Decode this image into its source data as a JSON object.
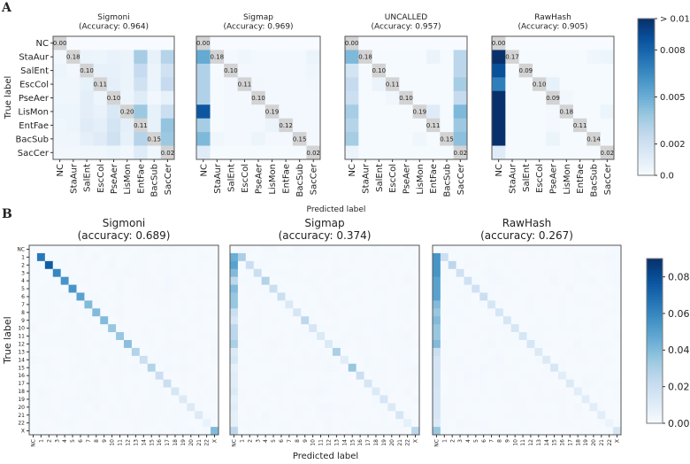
{
  "chart_data": [
    {
      "panel": "A",
      "type": "heatmap",
      "xlabel": "Predicted label",
      "ylabel": "True label",
      "labels": [
        "NC",
        "StaAur",
        "SalEnt",
        "EscCol",
        "PseAer",
        "LisMon",
        "EntFae",
        "BacSub",
        "SacCer"
      ],
      "colormap": "Blues",
      "colorbar": {
        "range": [
          0,
          0.01
        ],
        "ticks": [
          0.01,
          0.008,
          0.005,
          0.002,
          0.0
        ],
        "tick_labels": [
          "> 0.01",
          "0.008",
          "0.005",
          "0.002",
          "0.0"
        ]
      },
      "diagonal_masked_color": "#d3d3d3",
      "matrices": [
        {
          "title": "Sigmoni",
          "subtitle": "(Accuracy: 0.964)",
          "diagonal_labels": [
            "0.00",
            "0.18",
            "0.10",
            "0.11",
            "0.10",
            "0.20",
            "0.11",
            "0.15",
            "0.02"
          ],
          "values": [
            [
              0,
              0,
              0,
              0,
              0,
              0,
              0,
              0,
              0
            ],
            [
              0.0003,
              0,
              0.0006,
              0.0005,
              0.0007,
              0.0006,
              0.0035,
              0.0008,
              0.003
            ],
            [
              0.0005,
              0.0003,
              0,
              0.0008,
              0.0008,
              0.0006,
              0.0025,
              0.0006,
              0.002
            ],
            [
              0.0004,
              0.0004,
              0.0008,
              0,
              0.0009,
              0.0006,
              0.002,
              0.0006,
              0.0025
            ],
            [
              0.0004,
              0.0004,
              0.001,
              0.0005,
              0,
              0.0005,
              0.0012,
              0.0003,
              0.0008
            ],
            [
              0.0005,
              0.0005,
              0.001,
              0.0007,
              0.0015,
              0,
              0.0038,
              0.0008,
              0.0022
            ],
            [
              0.0004,
              0.0005,
              0.0012,
              0.0009,
              0.0018,
              0.0009,
              0,
              0.0008,
              0.004
            ],
            [
              0.0004,
              0.0004,
              0.0009,
              0.0012,
              0.002,
              0.0008,
              0.003,
              0,
              0.0038
            ],
            [
              0.0003,
              0.0003,
              0.0004,
              0.0004,
              0.0005,
              0.0003,
              0.0012,
              0.0004,
              0
            ]
          ]
        },
        {
          "title": "Sigmap",
          "subtitle": "(Accuracy: 0.969)",
          "diagonal_labels": [
            "0.00",
            "0.18",
            "0.10",
            "0.11",
            "0.10",
            "0.19",
            "0.12",
            "0.15",
            "0.02"
          ],
          "values": [
            [
              0,
              0,
              0,
              0,
              0,
              0,
              0,
              0,
              0
            ],
            [
              0.0052,
              0,
              0.0002,
              0.0004,
              0.0002,
              0.0002,
              0.0002,
              0.0002,
              0.0006
            ],
            [
              0.0032,
              0.0001,
              0,
              0.0002,
              0.0002,
              0.0002,
              0.0002,
              0.0002,
              0.0004
            ],
            [
              0.0032,
              0.0001,
              0.0002,
              0,
              0.0003,
              0.0002,
              0.0002,
              0.0002,
              0.0003
            ],
            [
              0.0032,
              0.0001,
              0.0002,
              0.0002,
              0,
              0.0002,
              0.0002,
              0.0002,
              0.0002
            ],
            [
              0.0085,
              0.0001,
              0.0002,
              0.0002,
              0.0002,
              0,
              0.0002,
              0.0002,
              0.0002
            ],
            [
              0.0035,
              0.0001,
              0.0002,
              0.0002,
              0.0002,
              0.0006,
              0,
              0.0002,
              0.0002
            ],
            [
              0.0045,
              0.0004,
              0.0002,
              0.0002,
              0.0005,
              0.0002,
              0.0002,
              0,
              0.0002
            ],
            [
              0.0012,
              0.0001,
              0.0001,
              0.0001,
              0.0001,
              0.0001,
              0.0001,
              0.0001,
              0
            ]
          ]
        },
        {
          "title": "UNCALLED",
          "subtitle": "(Accuracy: 0.957)",
          "diagonal_labels": [
            "0.00",
            "0.18",
            "0.10",
            "0.11",
            "0.10",
            "0.19",
            "0.11",
            "0.15",
            "0.02"
          ],
          "values": [
            [
              0,
              0,
              0,
              0,
              0,
              0,
              0,
              0,
              0
            ],
            [
              0.0045,
              0,
              0.0001,
              0.0001,
              0.0001,
              0.0001,
              0.0006,
              0.0001,
              0.0028
            ],
            [
              0.0018,
              0.0001,
              0,
              0.0001,
              0.0001,
              0.0001,
              0.0001,
              0.0001,
              0.0028
            ],
            [
              0.0025,
              0.0001,
              0.0006,
              0,
              0.0001,
              0.0001,
              0.0001,
              0.0001,
              0.0035
            ],
            [
              0.0022,
              0.0001,
              0.0001,
              0.0004,
              0,
              0.0001,
              0.0001,
              0.0001,
              0.0025
            ],
            [
              0.0035,
              0.0001,
              0.0001,
              0.0001,
              0.0001,
              0,
              0.0012,
              0.0001,
              0.0045
            ],
            [
              0.003,
              0.0001,
              0.0001,
              0.0001,
              0.0001,
              0.0001,
              0,
              0.0001,
              0.0038
            ],
            [
              0.0035,
              0.0001,
              0.0001,
              0.0001,
              0.0001,
              0.0004,
              0.0001,
              0,
              0.0042
            ],
            [
              0.0006,
              0.0001,
              0.0001,
              0.0001,
              0.0001,
              0.0001,
              0.0001,
              0.0001,
              0
            ]
          ]
        },
        {
          "title": "RawHash",
          "subtitle": "(Accuracy: 0.905)",
          "diagonal_labels": [
            "0.00",
            "0.17",
            "0.09",
            "0.10",
            "0.09",
            "0.18",
            "0.11",
            "0.14",
            "0.02"
          ],
          "values": [
            [
              0,
              0,
              0,
              0,
              0,
              0,
              0,
              0,
              0
            ],
            [
              0.012,
              0,
              0.0001,
              0.0001,
              0.0001,
              0.0001,
              0.0001,
              0.0004,
              0.0005
            ],
            [
              0.0088,
              0.0001,
              0,
              0.0001,
              0.0001,
              0.0001,
              0.0001,
              0.0001,
              0.0001
            ],
            [
              0.007,
              0.0001,
              0.0001,
              0,
              0.0008,
              0.0001,
              0.0001,
              0.0001,
              0.0001
            ],
            [
              0.012,
              0.0001,
              0.0001,
              0.0001,
              0,
              0.0003,
              0.0001,
              0.0001,
              0.0001
            ],
            [
              0.012,
              0.0001,
              0.0001,
              0.0001,
              0.0002,
              0,
              0.0001,
              0.0001,
              0.0005
            ],
            [
              0.012,
              0.0001,
              0.0001,
              0.0001,
              0.0002,
              0.0001,
              0,
              0.0001,
              0.0001
            ],
            [
              0.012,
              0.0001,
              0.0001,
              0.0001,
              0.0006,
              0.0001,
              0.0001,
              0,
              0.0001
            ],
            [
              0.0012,
              0.0001,
              0.0001,
              0.0001,
              0.0001,
              0.0001,
              0.0001,
              0.0001,
              0
            ]
          ]
        }
      ]
    },
    {
      "panel": "B",
      "type": "heatmap",
      "xlabel": "Predicted label",
      "ylabel": "True label",
      "labels": [
        "NC",
        "1",
        "2",
        "3",
        "4",
        "5",
        "6",
        "7",
        "8",
        "9",
        "10",
        "11",
        "12",
        "13",
        "14",
        "15",
        "16",
        "17",
        "18",
        "19",
        "20",
        "21",
        "22",
        "X"
      ],
      "colormap": "Blues",
      "colorbar": {
        "range": [
          0,
          0.09
        ],
        "ticks": [
          0.08,
          0.06,
          0.04,
          0.02,
          0.0
        ],
        "tick_labels": [
          "0.08",
          "0.06",
          "0.04",
          "0.02",
          "0.00"
        ]
      },
      "background_value": 0.001,
      "matrices": [
        {
          "title": "Sigmoni",
          "subtitle": "(accuracy: 0.689)",
          "diagonal": [
            0,
            0.065,
            0.075,
            0.06,
            0.055,
            0.055,
            0.05,
            0.04,
            0.04,
            0.04,
            0.035,
            0.035,
            0.038,
            0.028,
            0.02,
            0.028,
            0.02,
            0.02,
            0.015,
            0.012,
            0.012,
            0.012,
            0.006,
            0.04
          ],
          "nc_column": [
            0,
            0.001,
            0.001,
            0.001,
            0.001,
            0.001,
            0.001,
            0.001,
            0.001,
            0.001,
            0.002,
            0.001,
            0.001,
            0.001,
            0.002,
            0.001,
            0.001,
            0.001,
            0.001,
            0.001,
            0.001,
            0.001,
            0.001,
            0.001
          ]
        },
        {
          "title": "Sigmap",
          "subtitle": "(accuracy: 0.374)",
          "diagonal": [
            0,
            0.03,
            0.02,
            0.02,
            0.028,
            0.02,
            0.02,
            0.013,
            0.015,
            0.025,
            0.015,
            0.012,
            0.012,
            0.03,
            0.01,
            0.035,
            0.02,
            0.015,
            0.012,
            0.015,
            0.012,
            0.015,
            0.008,
            0.025
          ],
          "nc_column": [
            0,
            0.045,
            0.05,
            0.04,
            0.025,
            0.04,
            0.035,
            0.035,
            0.02,
            0.015,
            0.025,
            0.025,
            0.03,
            0.012,
            0.015,
            0.008,
            0.01,
            0.01,
            0.012,
            0.008,
            0.01,
            0.008,
            0.008,
            0.025
          ]
        },
        {
          "title": "RawHash",
          "subtitle": "(accuracy: 0.267)",
          "diagonal": [
            0,
            0.02,
            0.025,
            0.018,
            0.018,
            0.018,
            0.02,
            0.015,
            0.015,
            0.015,
            0.015,
            0.015,
            0.015,
            0.012,
            0.012,
            0.015,
            0.01,
            0.012,
            0.01,
            0.01,
            0.01,
            0.01,
            0.005,
            0.015
          ],
          "nc_column": [
            0,
            0.055,
            0.055,
            0.055,
            0.05,
            0.05,
            0.05,
            0.04,
            0.035,
            0.04,
            0.035,
            0.035,
            0.04,
            0.02,
            0.016,
            0.016,
            0.016,
            0.016,
            0.015,
            0.015,
            0.015,
            0.015,
            0.012,
            0.035
          ]
        }
      ]
    }
  ]
}
